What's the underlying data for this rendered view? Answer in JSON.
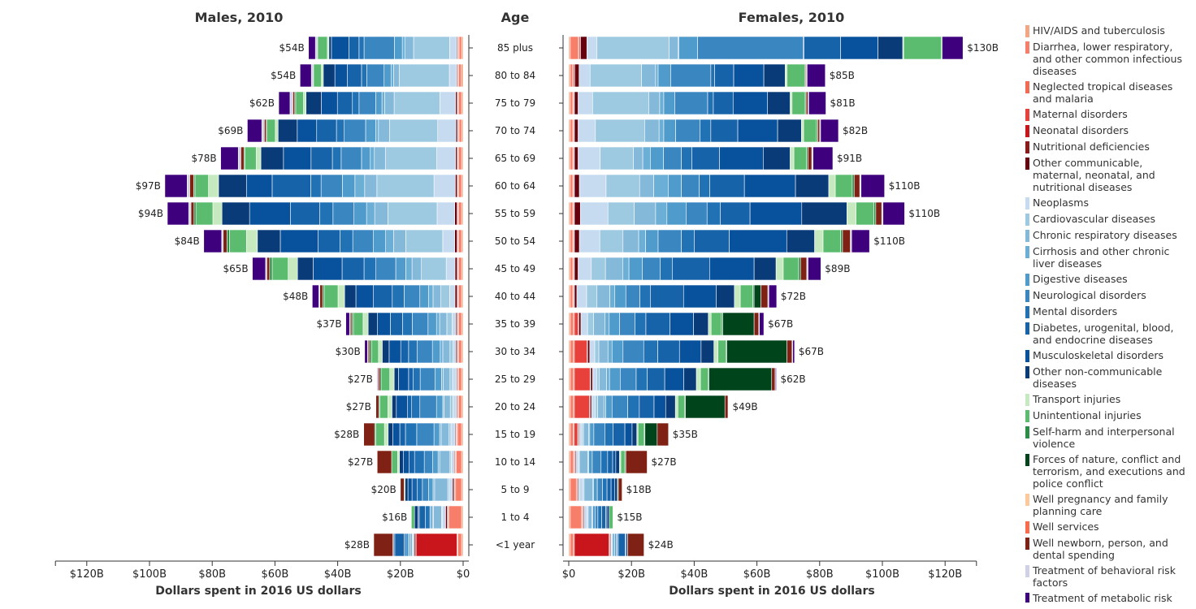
{
  "chart_data": {
    "type": "bar",
    "titles": {
      "males": "Males, 2010",
      "age": "Age",
      "females": "Females, 2010"
    },
    "xlabel": "Dollars spent in 2016 US dollars",
    "xlim": [
      0,
      130
    ],
    "ticks": [
      0,
      20,
      40,
      60,
      80,
      100,
      120
    ],
    "male_tick_labels": [
      "$0",
      "$20B",
      "$40B",
      "$60B",
      "$80B",
      "$100B",
      "$120B"
    ],
    "female_tick_labels": [
      "$0",
      "$20B",
      "$40B",
      "$60B",
      "$80B",
      "$100B",
      "$120B"
    ],
    "categories": [
      "HIV/AIDS and tuberculosis",
      "Diarrhea, lower respiratory, and other common infectious diseases",
      "Neglected tropical diseases and malaria",
      "Maternal disorders",
      "Neonatal disorders",
      "Nutritional deficiencies",
      "Other communicable, maternal, neonatal, and nutritional diseases",
      "Neoplasms",
      "Cardiovascular diseases",
      "Chronic respiratory diseases",
      "Cirrhosis and other chronic liver diseases",
      "Digestive diseases",
      "Neurological disorders",
      "Mental disorders",
      "Diabetes, urogenital, blood, and endocrine diseases",
      "Musculoskeletal disorders",
      "Other non-communicable diseases",
      "Transport injuries",
      "Unintentional injuries",
      "Self-harm and interpersonal violence",
      "Forces of nature, conflict and terrorism, and executions and police conflict",
      "Well pregnancy and family planning care",
      "Well services",
      "Well newborn, person, and dental spending",
      "Treatment of behavioral risk factors",
      "Treatment of metabolic risk factors"
    ],
    "colors": [
      "#f4a582",
      "#f77f6a",
      "#f36a52",
      "#e8413c",
      "#c9161d",
      "#8b1a1a",
      "#67000d",
      "#c6dbef",
      "#9ecae1",
      "#84b9da",
      "#6baed6",
      "#4f9bcb",
      "#3a86c1",
      "#2171b5",
      "#1763a9",
      "#08519c",
      "#083b78",
      "#c7e9c0",
      "#5bbb6e",
      "#2a8e46",
      "#00441b",
      "#fdc89a",
      "#fb6a4a",
      "#7f2114",
      "#d0d1e6",
      "#3f007d"
    ],
    "ages": [
      "85 plus",
      "80 to 84",
      "75 to 79",
      "70 to 74",
      "65 to 69",
      "60 to 64",
      "55 to 59",
      "50 to 54",
      "45 to 49",
      "40 to 44",
      "35 to 39",
      "30 to 34",
      "25 to 29",
      "20 to 24",
      "15 to 19",
      "10 to 14",
      "5 to 9",
      "1 to 4",
      "<1 year"
    ],
    "male_totals": [
      54,
      54,
      62,
      69,
      78,
      97,
      94,
      84,
      65,
      48,
      37,
      30,
      27,
      27,
      28,
      27,
      20,
      16,
      28
    ],
    "female_totals": [
      130,
      85,
      81,
      82,
      91,
      110,
      110,
      110,
      89,
      72,
      67,
      67,
      62,
      49,
      35,
      27,
      18,
      15,
      24
    ],
    "male_total_labels": [
      "$54B",
      "$54B",
      "$62B",
      "$69B",
      "$78B",
      "$97B",
      "$94B",
      "$84B",
      "$65B",
      "$48B",
      "$37B",
      "$30B",
      "$27B",
      "$27B",
      "$28B",
      "$27B",
      "$20B",
      "$16B",
      "$28B"
    ],
    "female_total_labels": [
      "$130B",
      "$85B",
      "$81B",
      "$82B",
      "$91B",
      "$110B",
      "$110B",
      "$110B",
      "$89B",
      "$72B",
      "$67B",
      "$67B",
      "$62B",
      "$49B",
      "$35B",
      "$27B",
      "$18B",
      "$15B",
      "$24B"
    ],
    "male_segments": [
      [
        0.5,
        0.8,
        0.3,
        0,
        0,
        0.2,
        0.3,
        2.2,
        11.5,
        2.8,
        0.8,
        2.5,
        9.7,
        1.6,
        3.2,
        5.6,
        0.8,
        0.5,
        3.1,
        0,
        0,
        0,
        0,
        0,
        0.7,
        2.2
      ],
      [
        0.6,
        0.8,
        0.3,
        0,
        0,
        0.2,
        0.3,
        2.2,
        16.0,
        1.8,
        0.8,
        2.2,
        5.5,
        1.7,
        4.5,
        4.0,
        3.7,
        0.6,
        2.5,
        0,
        0,
        0,
        0,
        0,
        0.7,
        3.6
      ],
      [
        0.5,
        0.9,
        0.3,
        0,
        0,
        0.2,
        0.5,
        5.0,
        14.6,
        3.0,
        0.9,
        2.0,
        5.3,
        2.1,
        4.8,
        5.1,
        4.9,
        0.8,
        2.5,
        0.3,
        0,
        0,
        0,
        0.6,
        0.9,
        3.6
      ],
      [
        0.5,
        0.8,
        0.3,
        0,
        0,
        0.2,
        0.5,
        5.8,
        15.4,
        3.5,
        0.9,
        3.2,
        6.8,
        2.5,
        6.3,
        6.2,
        6.1,
        0.9,
        2.6,
        0.3,
        0,
        0,
        0,
        0.6,
        0.8,
        4.6
      ],
      [
        0.5,
        0.9,
        0.3,
        0,
        0,
        0.2,
        0.5,
        6.0,
        16.4,
        3.5,
        1.3,
        2.8,
        6.5,
        2.8,
        6.8,
        8.8,
        7.2,
        1.5,
        3.6,
        0.3,
        0,
        0,
        0,
        1.0,
        0.8,
        5.6
      ],
      [
        0.5,
        0.9,
        0.3,
        0,
        0,
        0.2,
        0.6,
        6.8,
        18.2,
        3.9,
        3.1,
        4.0,
        6.8,
        3.3,
        12.3,
        8.2,
        8.9,
        3.2,
        4.3,
        0.4,
        0,
        0,
        0,
        1.3,
        0.8,
        7.1
      ],
      [
        0.5,
        0.9,
        0.3,
        0,
        0,
        0.3,
        0.7,
        5.6,
        15.7,
        4.2,
        2.6,
        4.0,
        6.7,
        4.2,
        9.4,
        13.0,
        8.8,
        2.9,
        5.4,
        0.6,
        0,
        0,
        0,
        1.0,
        0.7,
        6.8
      ],
      [
        0.5,
        0.9,
        0.3,
        0,
        0,
        0.3,
        0.7,
        3.8,
        11.8,
        3.9,
        2.5,
        3.9,
        6.6,
        4.1,
        7.0,
        12.0,
        7.3,
        3.5,
        5.4,
        0.8,
        0,
        0,
        0,
        1.2,
        0.5,
        5.7
      ],
      [
        0.5,
        0.9,
        0.3,
        0,
        0,
        0.2,
        0.7,
        2.8,
        7.9,
        3.0,
        2.0,
        3.2,
        6.3,
        3.8,
        7.0,
        9.2,
        5.0,
        3.0,
        5.1,
        0.8,
        0,
        0,
        0,
        0.9,
        0.4,
        4.2
      ],
      [
        0.5,
        0.9,
        0.3,
        0,
        0,
        0.2,
        0.7,
        1.7,
        2.8,
        2.5,
        1.4,
        2.8,
        5.0,
        3.8,
        6.0,
        5.6,
        3.6,
        2.1,
        4.4,
        0.5,
        0,
        0,
        0,
        0.9,
        0.3,
        2.1
      ],
      [
        0.5,
        0.9,
        0.3,
        0,
        0,
        0.2,
        0.4,
        1.2,
        1.7,
        2.3,
        1.0,
        2.7,
        5.0,
        3.1,
        3.9,
        4.1,
        3.0,
        1.6,
        3.1,
        0.5,
        0,
        0,
        0,
        0.5,
        0.2,
        1.2
      ],
      [
        0.5,
        0.9,
        0.3,
        0,
        0,
        0.2,
        0.4,
        0.9,
        1.0,
        2.3,
        0.8,
        2.5,
        4.9,
        2.7,
        2.5,
        3.7,
        2.2,
        1.2,
        2.2,
        0.6,
        0,
        0,
        0,
        0.5,
        0.2,
        0.9
      ],
      [
        0.5,
        0.9,
        0.3,
        0,
        0,
        0.2,
        0.3,
        1.2,
        0.8,
        2.2,
        0.5,
        2.1,
        4.7,
        2.2,
        1.5,
        3.2,
        1.4,
        1.4,
        2.6,
        0.5,
        0,
        0,
        0,
        0.6,
        0.2,
        0.2
      ],
      [
        0.5,
        0.9,
        0.3,
        0,
        0,
        0.2,
        0.3,
        1.1,
        0.8,
        2.0,
        0.4,
        2.0,
        5.3,
        2.6,
        1.3,
        3.6,
        1.4,
        1.3,
        2.6,
        0.3,
        0,
        0,
        0,
        0.9,
        0.1,
        0.1
      ],
      [
        0.5,
        1.3,
        0.3,
        0,
        0,
        0.2,
        0.3,
        1.3,
        0.6,
        2.5,
        0.5,
        1.8,
        5.5,
        3.6,
        1.8,
        2.2,
        1.5,
        1.2,
        2.8,
        0.3,
        0,
        0,
        0,
        3.5,
        0.1,
        0
      ],
      [
        0.5,
        1.7,
        0.3,
        0,
        0,
        0.2,
        0.3,
        0.8,
        0.4,
        3.3,
        0.5,
        1.7,
        2.7,
        3.1,
        1.7,
        1.9,
        1.2,
        0.6,
        1.9,
        0,
        0,
        0,
        0,
        4.6,
        0,
        0
      ],
      [
        0.5,
        1.9,
        0.3,
        0,
        0,
        0.2,
        0.5,
        1.0,
        0.5,
        4.2,
        0.5,
        1.4,
        2.0,
        1.6,
        1.7,
        1.3,
        0.9,
        0,
        0.3,
        0,
        0,
        0,
        0,
        1.2,
        0,
        0
      ],
      [
        0.5,
        4.0,
        0.3,
        0,
        0,
        0.3,
        0.5,
        1.0,
        0.3,
        2.6,
        0.2,
        0.6,
        0.3,
        1.5,
        1.9,
        0.4,
        1.1,
        0,
        1.0,
        0,
        0,
        0,
        0,
        0,
        0,
        0
      ],
      [
        0.5,
        1.2,
        0.3,
        0,
        13.0,
        0.3,
        0.4,
        0.2,
        0.3,
        0.8,
        0,
        0.5,
        0.7,
        0.6,
        3.0,
        0.3,
        0.3,
        0,
        0,
        0,
        0,
        0,
        0,
        6.1,
        0,
        0
      ]
    ],
    "female_segments": [
      [
        0.5,
        2.6,
        0.3,
        0,
        0,
        0.4,
        2.0,
        3.2,
        23.0,
        2.8,
        0.3,
        6.0,
        33.6,
        0.3,
        11.7,
        11.9,
        7.9,
        0.3,
        12.0,
        0.3,
        0,
        0,
        0,
        0,
        0,
        6.6
      ],
      [
        0.5,
        0.8,
        0.3,
        0,
        0,
        0.3,
        1.4,
        3.5,
        16.4,
        4.5,
        0.8,
        4.0,
        12.8,
        1.2,
        6.1,
        9.6,
        6.8,
        0.6,
        5.6,
        0.3,
        0,
        0,
        0,
        0.3,
        0.2,
        5.8
      ],
      [
        0.5,
        0.8,
        0.3,
        0,
        0,
        0.2,
        1.2,
        4.6,
        17.9,
        3.5,
        1.3,
        3.5,
        10.5,
        1.8,
        6.3,
        11.0,
        7.2,
        0.6,
        4.2,
        0.3,
        0,
        0,
        0,
        0.6,
        0.2,
        5.5
      ],
      [
        0.5,
        0.8,
        0.3,
        0,
        0,
        0.2,
        1.2,
        5.5,
        15.7,
        4.6,
        1.5,
        3.8,
        7.8,
        3.4,
        8.6,
        12.7,
        7.6,
        0.7,
        4.1,
        0.4,
        0,
        0,
        0,
        0.6,
        0.3,
        5.7
      ],
      [
        0.5,
        0.8,
        0.3,
        0,
        0,
        0.2,
        1.2,
        7.0,
        10.6,
        3.0,
        2.4,
        4.2,
        5.7,
        3.4,
        8.8,
        13.9,
        8.6,
        1.2,
        4.0,
        0.5,
        0,
        0,
        0,
        1.2,
        0.4,
        6.3
      ],
      [
        0.5,
        0.8,
        0.3,
        0,
        0,
        0.2,
        1.6,
        8.5,
        10.7,
        4.5,
        4.6,
        4.2,
        5.7,
        3.4,
        11.0,
        16.3,
        10.6,
        2.1,
        5.4,
        0.6,
        0,
        0,
        0,
        1.8,
        0.4,
        7.5
      ],
      [
        0.5,
        0.8,
        0.3,
        0,
        0,
        0.2,
        1.9,
        8.8,
        8.4,
        6.8,
        3.6,
        6.1,
        6.7,
        4.2,
        9.5,
        16.5,
        14.4,
        2.9,
        5.7,
        0.6,
        0,
        0,
        0,
        1.9,
        0.4,
        6.9
      ],
      [
        0.5,
        0.8,
        0.3,
        0,
        0,
        0.2,
        1.6,
        6.5,
        7.4,
        5.0,
        2.2,
        4.0,
        7.4,
        4.1,
        11.2,
        18.3,
        8.9,
        2.7,
        5.6,
        0.6,
        0,
        0,
        0,
        2.5,
        0.4,
        5.7
      ],
      [
        0.5,
        0.8,
        0.3,
        0,
        0,
        0.2,
        1.2,
        4.2,
        4.5,
        5.5,
        2.0,
        4.3,
        5.7,
        3.8,
        11.9,
        14.2,
        7.0,
        2.3,
        4.9,
        0.6,
        0,
        0,
        0,
        2.0,
        0.4,
        4.1
      ],
      [
        0.5,
        0.8,
        0.3,
        0,
        0,
        0.2,
        0.8,
        3.1,
        3.3,
        4.1,
        1.6,
        3.5,
        4.5,
        3.3,
        10.6,
        10.4,
        5.8,
        1.9,
        4.0,
        0.4,
        2.2,
        0,
        0,
        2.2,
        0.3,
        2.5
      ],
      [
        0.5,
        1.0,
        0.3,
        1.2,
        0,
        0.2,
        0.7,
        2.1,
        1.9,
        3.6,
        1.4,
        3.3,
        4.9,
        3.5,
        7.7,
        7.5,
        4.7,
        0.9,
        3.3,
        0.4,
        10.0,
        0,
        0,
        1.5,
        0.2,
        1.4
      ],
      [
        0.5,
        1.0,
        0.3,
        4.0,
        0,
        0.2,
        0.7,
        1.6,
        1.3,
        2.9,
        1.3,
        3.5,
        6.6,
        4.5,
        6.9,
        6.9,
        4.1,
        1.3,
        2.5,
        0.3,
        19.2,
        0,
        0,
        1.6,
        0.2,
        0.6
      ],
      [
        0.5,
        1.0,
        0.3,
        5.0,
        0,
        0.2,
        0.6,
        1.3,
        0.8,
        2.4,
        0.9,
        3.4,
        5.1,
        3.5,
        5.6,
        6.1,
        4.0,
        1.3,
        2.4,
        0.3,
        20.0,
        0,
        0,
        1.1,
        0.1,
        0.3
      ],
      [
        0.5,
        1.0,
        0.3,
        4.8,
        0,
        0.2,
        0.5,
        1.2,
        0.7,
        2.0,
        0.6,
        2.0,
        5.0,
        3.7,
        4.7,
        3.7,
        3.1,
        0.8,
        2.2,
        0.2,
        12.6,
        0,
        0,
        1.0,
        0.1,
        0
      ],
      [
        0.5,
        0.9,
        0.3,
        1.2,
        0,
        0.2,
        0.3,
        0.8,
        0.5,
        1.7,
        0.3,
        1.3,
        3.5,
        2.6,
        3.8,
        2.3,
        1.5,
        0.4,
        2.0,
        0.2,
        3.9,
        0,
        0,
        3.6,
        0,
        0
      ],
      [
        0.5,
        1.0,
        0.3,
        0,
        0,
        0.2,
        0.3,
        0.8,
        0.3,
        2.7,
        0.3,
        1.1,
        2.8,
        2.1,
        1.6,
        1.0,
        1.2,
        0.4,
        1.3,
        0.3,
        0,
        0,
        0,
        6.8,
        0,
        0
      ],
      [
        0.5,
        1.9,
        0.3,
        0,
        0,
        0.2,
        0.3,
        1.3,
        0.4,
        2.7,
        0.3,
        1.2,
        1.7,
        1.4,
        1.3,
        1.2,
        0.8,
        0,
        0.3,
        0,
        0,
        0,
        0,
        1.2,
        0,
        0
      ],
      [
        0.5,
        3.6,
        0.3,
        0,
        0,
        0.2,
        0.3,
        1.0,
        0.3,
        1.2,
        0.3,
        0.7,
        0.9,
        1.2,
        1.3,
        0.4,
        0.7,
        0,
        1.2,
        0,
        0,
        0,
        0,
        0,
        0,
        0
      ],
      [
        0.5,
        1.0,
        0.3,
        0,
        11.0,
        0.3,
        0.3,
        0.2,
        0.3,
        0.8,
        0,
        0.4,
        0.3,
        0.4,
        2.2,
        0.3,
        0.5,
        0,
        0,
        0,
        0,
        0,
        0,
        5.2,
        0,
        0
      ]
    ]
  }
}
